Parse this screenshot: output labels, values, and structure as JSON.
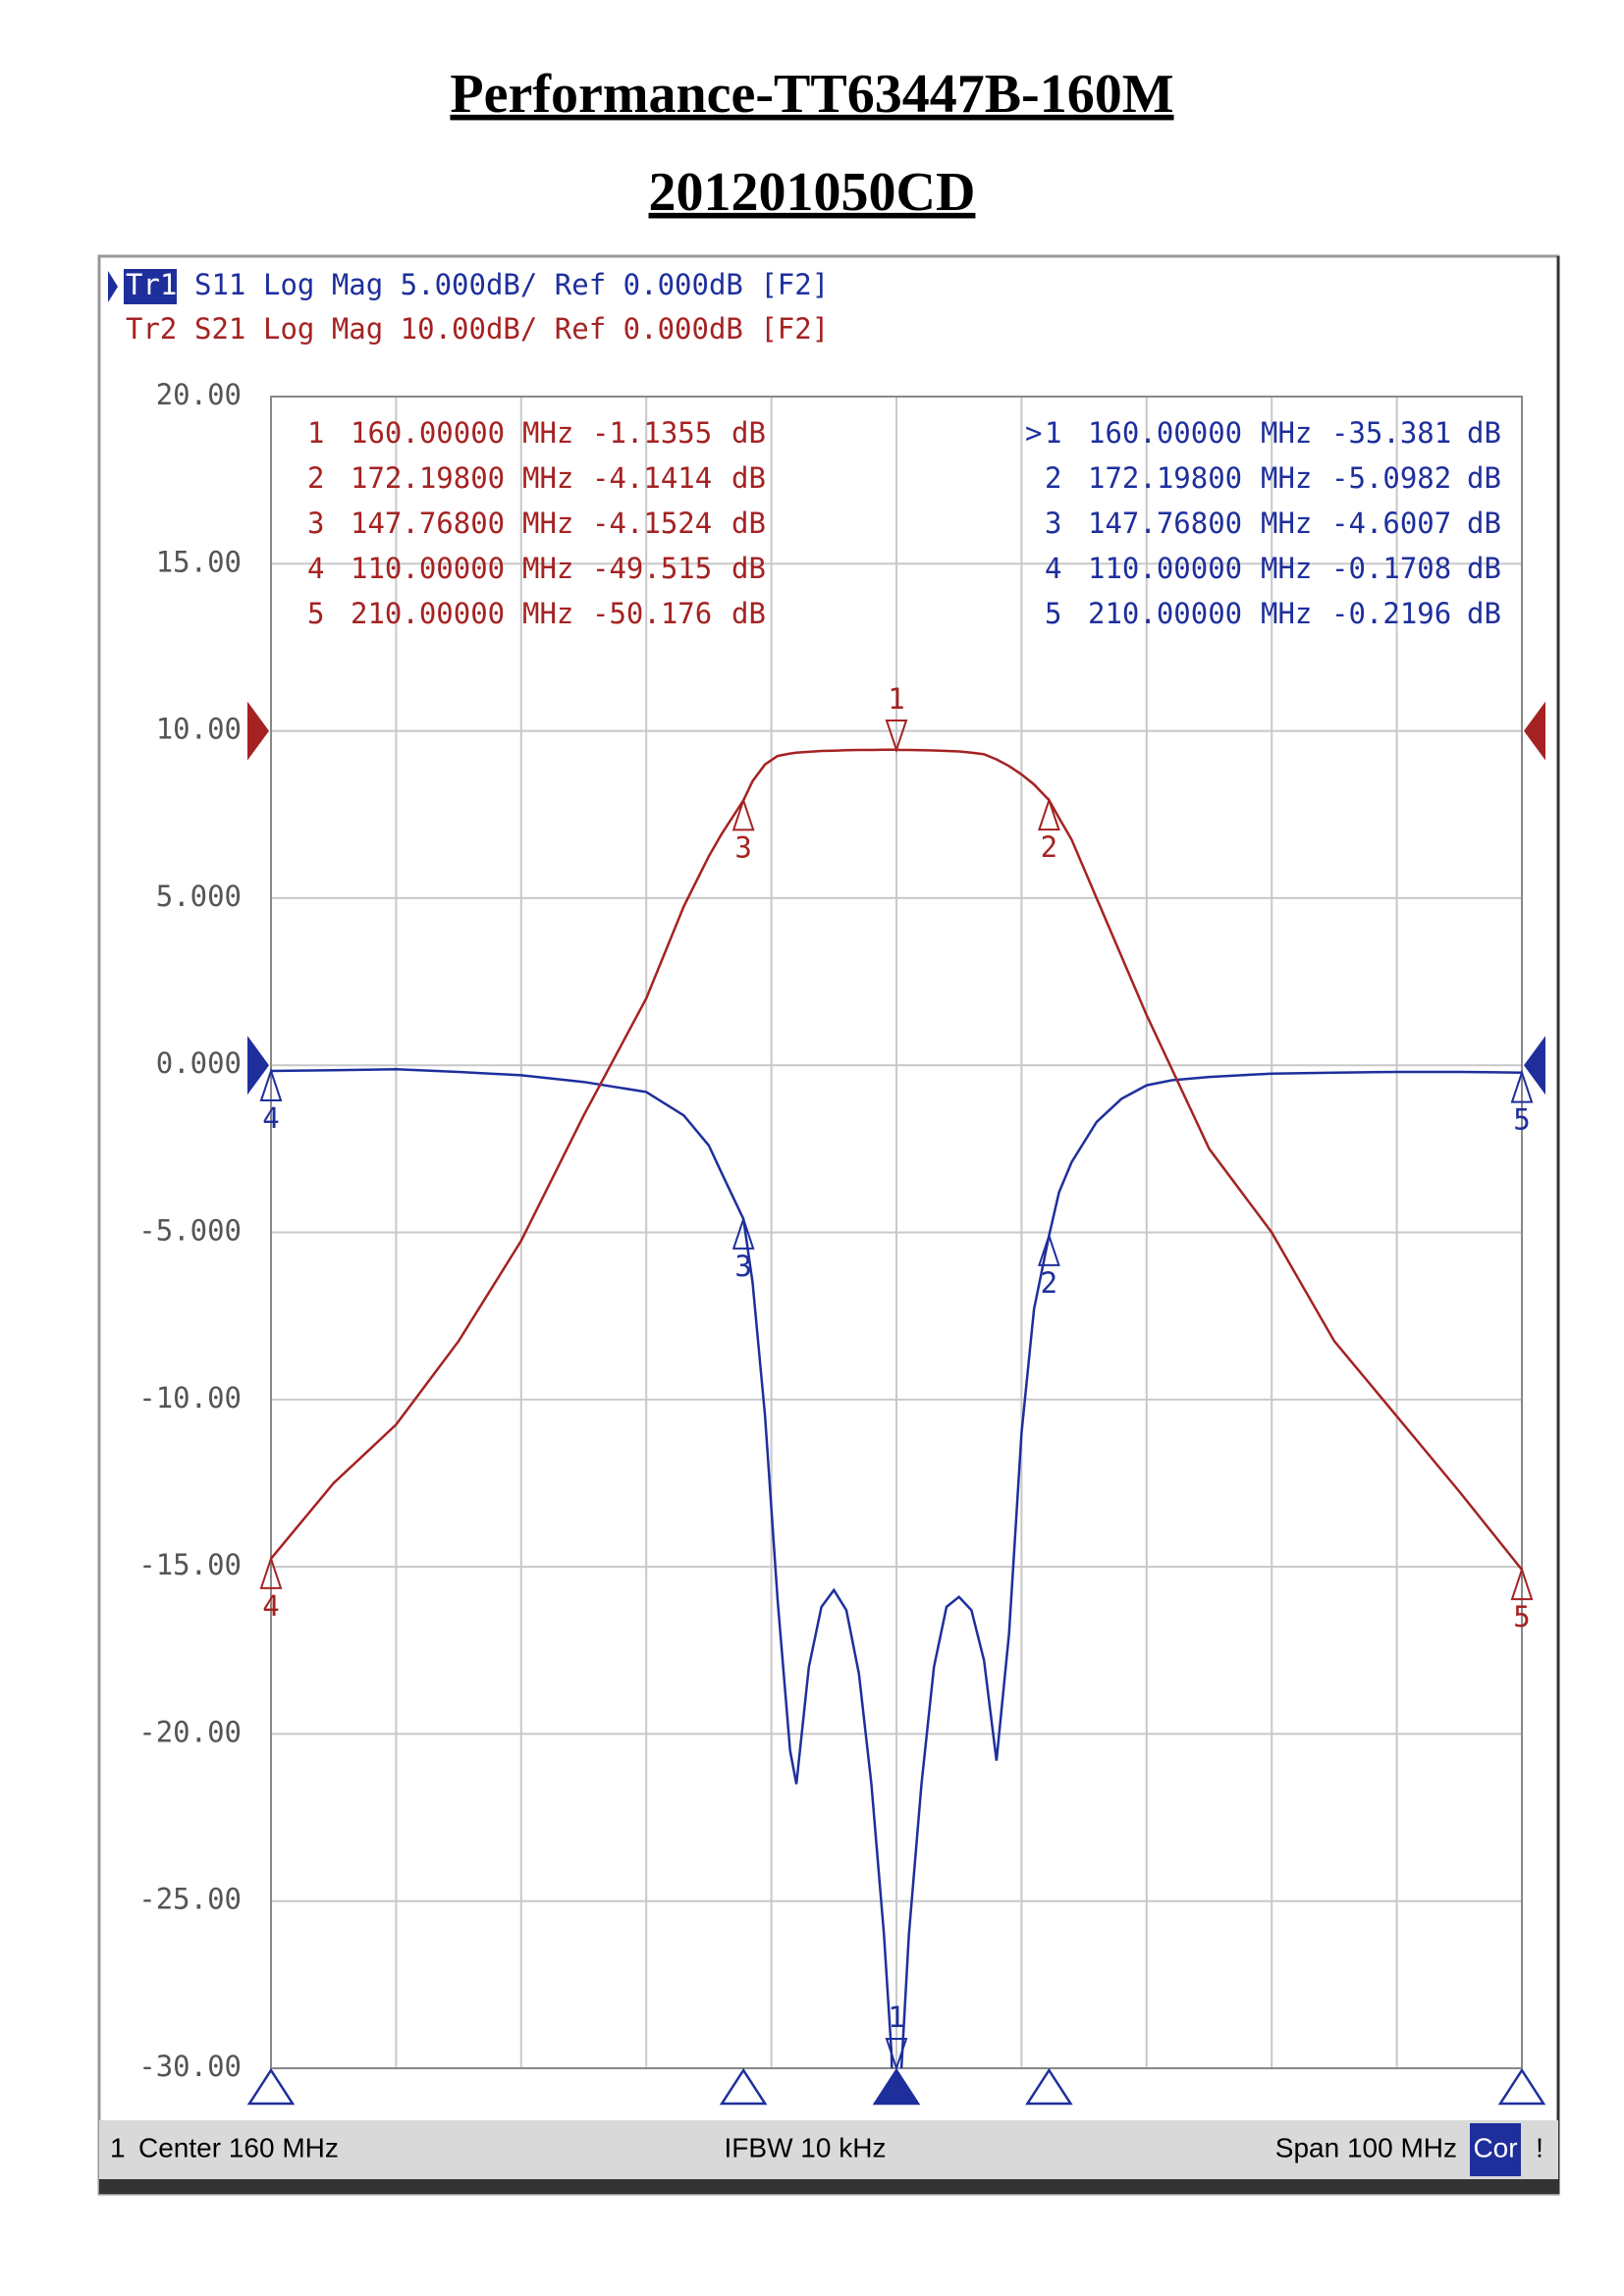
{
  "title": "Performance-TT63447B-160M",
  "subtitle": "201201050CD",
  "chart_data": {
    "type": "line",
    "x": [
      110,
      115,
      120,
      125,
      130,
      135,
      140,
      143,
      145,
      146,
      147.768,
      148.5,
      149.5,
      150.5,
      151.5,
      152,
      153,
      154,
      155,
      156,
      157,
      158,
      159,
      159.6,
      160,
      160.4,
      161,
      162,
      163,
      164,
      165,
      166,
      167,
      168,
      169,
      170,
      171,
      172.198,
      173,
      174,
      176,
      178,
      180,
      182,
      185,
      190,
      195,
      200,
      205,
      210
    ],
    "xlim": [
      110,
      210
    ],
    "xticks": [
      110,
      120,
      130,
      140,
      150,
      160,
      170,
      180,
      190,
      200,
      210
    ],
    "ylim": [
      -30,
      20
    ],
    "yticks": [
      {
        "value": 20,
        "label": "20.00"
      },
      {
        "value": 15,
        "label": "15.00"
      },
      {
        "value": 10,
        "label": "10.00"
      },
      {
        "value": 5,
        "label": "5.000"
      },
      {
        "value": 0,
        "label": "0.000"
      },
      {
        "value": -5,
        "label": "-5.000"
      },
      {
        "value": -10,
        "label": "-10.00"
      },
      {
        "value": -15,
        "label": "-15.00"
      },
      {
        "value": -20,
        "label": "-20.00"
      },
      {
        "value": -25,
        "label": "-25.00"
      },
      {
        "value": -30,
        "label": "-30.00"
      }
    ],
    "y2lim": [
      -80,
      20
    ],
    "grid": true,
    "x_unit": "MHz",
    "unit": "dB",
    "active_symbol": ">",
    "series": [
      {
        "trace": "Tr1",
        "name": "S11",
        "info": "Log Mag 5.000dB/ Ref 0.000dB [F2]",
        "color": "#1e2f9c",
        "ref_value": 0,
        "values": [
          -0.17,
          -0.15,
          -0.12,
          -0.2,
          -0.3,
          -0.5,
          -0.8,
          -1.5,
          -2.4,
          -3.2,
          -4.6007,
          -6.5,
          -10.5,
          -16,
          -20.5,
          -21.5,
          -18,
          -16.2,
          -15.7,
          -16.3,
          -18.2,
          -21.5,
          -26,
          -29.5,
          -35.381,
          -30,
          -26,
          -21.5,
          -18,
          -16.2,
          -15.9,
          -16.3,
          -17.8,
          -20.8,
          -17,
          -11,
          -7.3,
          -5.0982,
          -3.8,
          -2.9,
          -1.7,
          -1.0,
          -0.6,
          -0.45,
          -0.35,
          -0.25,
          -0.22,
          -0.2,
          -0.2,
          -0.2196
        ],
        "markers": [
          {
            "id": "1",
            "x": 160,
            "x_label": "160.00000",
            "value": -35.381,
            "value_label": "-35.381"
          },
          {
            "id": "2",
            "x": 172.198,
            "x_label": "172.19800",
            "value": -5.0982,
            "value_label": "-5.0982"
          },
          {
            "id": "3",
            "x": 147.768,
            "x_label": "147.76800",
            "value": -4.6007,
            "value_label": "-4.6007"
          },
          {
            "id": "4",
            "x": 110,
            "x_label": "110.00000",
            "value": -0.1708,
            "value_label": "-0.1708"
          },
          {
            "id": "5",
            "x": 210,
            "x_label": "210.00000",
            "value": -0.2196,
            "value_label": "-0.2196"
          }
        ]
      },
      {
        "trace": "Tr2",
        "name": "S21",
        "info": "Log Mag 10.00dB/ Ref 0.000dB [F2]",
        "color": "#a52222",
        "axis": "y2",
        "ref_value": 0,
        "values": [
          -49.515,
          -45,
          -41.5,
          -36.5,
          -30.5,
          -23,
          -16,
          -10.5,
          -7.5,
          -6.2,
          -4.1524,
          -3.0,
          -2.0,
          -1.5,
          -1.35,
          -1.3,
          -1.25,
          -1.2,
          -1.18,
          -1.15,
          -1.14,
          -1.14,
          -1.13,
          -1.13,
          -1.1355,
          -1.14,
          -1.14,
          -1.15,
          -1.17,
          -1.2,
          -1.23,
          -1.3,
          -1.4,
          -1.7,
          -2.1,
          -2.6,
          -3.2,
          -4.1414,
          -5.2,
          -6.5,
          -10,
          -13.5,
          -17,
          -20.2,
          -25,
          -30,
          -36.5,
          -41,
          -45.5,
          -50.176
        ],
        "markers": [
          {
            "id": "1",
            "x": 160,
            "x_label": "160.00000",
            "value": -1.1355,
            "value_label": "-1.1355"
          },
          {
            "id": "2",
            "x": 172.198,
            "x_label": "172.19800",
            "value": -4.1414,
            "value_label": "-4.1414"
          },
          {
            "id": "3",
            "x": 147.768,
            "x_label": "147.76800",
            "value": -4.1524,
            "value_label": "-4.1524"
          },
          {
            "id": "4",
            "x": 110,
            "x_label": "110.00000",
            "value": -49.515,
            "value_label": "-49.515"
          },
          {
            "id": "5",
            "x": 210,
            "x_label": "210.00000",
            "value": -50.176,
            "value_label": "-50.176"
          }
        ]
      }
    ],
    "footer": {
      "channel": "1",
      "center": "Center 160 MHz",
      "ifbw": "IFBW 10 kHz",
      "span": "Span 100 MHz",
      "cor": "Cor",
      "alert": "!"
    }
  }
}
